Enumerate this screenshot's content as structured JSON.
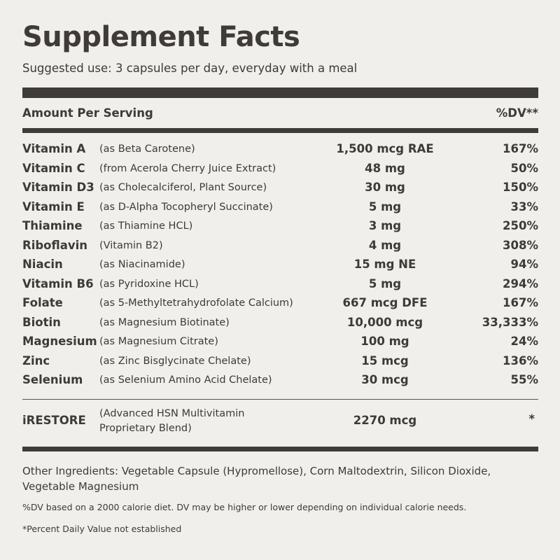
{
  "title": "Supplement Facts",
  "suggested_use": "Suggested use: 3 capsules per day, everyday with a meal",
  "header": {
    "amount_label": "Amount Per Serving",
    "dv_label": "%DV**"
  },
  "nutrients": [
    {
      "name": "Vitamin A",
      "source": "(as Beta Carotene)",
      "amount": "1,500 mcg RAE",
      "dv": "167%"
    },
    {
      "name": "Vitamin C",
      "source": "(from Acerola Cherry Juice Extract)",
      "amount": "48 mg",
      "dv": "50%"
    },
    {
      "name": "Vitamin D3",
      "source": "(as Cholecalciferol, Plant Source)",
      "amount": "30 mg",
      "dv": "150%"
    },
    {
      "name": "Vitamin E",
      "source": "(as D-Alpha Tocopheryl Succinate)",
      "amount": "5 mg",
      "dv": "33%"
    },
    {
      "name": "Thiamine",
      "source": "(as Thiamine HCL)",
      "amount": "3 mg",
      "dv": "250%"
    },
    {
      "name": "Riboflavin",
      "source": "(Vitamin B2)",
      "amount": "4 mg",
      "dv": "308%"
    },
    {
      "name": "Niacin",
      "source": "(as Niacinamide)",
      "amount": "15 mg NE",
      "dv": "94%"
    },
    {
      "name": "Vitamin B6",
      "source": "(as Pyridoxine HCL)",
      "amount": "5 mg",
      "dv": "294%"
    },
    {
      "name": "Folate",
      "source": "(as 5-Methyltetrahydrofolate Calcium)",
      "amount": "667 mcg DFE",
      "dv": "167%"
    },
    {
      "name": "Biotin",
      "source": "(as Magnesium Biotinate)",
      "amount": "10,000 mcg",
      "dv": "33,333%"
    },
    {
      "name": "Magnesium",
      "source": "(as Magnesium Citrate)",
      "amount": "100 mg",
      "dv": "24%"
    },
    {
      "name": "Zinc",
      "source": "(as Zinc Bisglycinate Chelate)",
      "amount": "15 mcg",
      "dv": "136%"
    },
    {
      "name": "Selenium",
      "source": "(as Selenium Amino Acid Chelate)",
      "amount": "30 mcg",
      "dv": "55%"
    }
  ],
  "blend": {
    "name": "iRESTORE",
    "source_line1": "(Advanced HSN Multivitamin",
    "source_line2": "Proprietary Blend)",
    "amount": "2270 mcg",
    "dv": "*"
  },
  "other_ingredients": "Other Ingredients: Vegetable Capsule (Hypromellose), Corn Maltodextrin, Silicon Dioxide, Vegetable Magnesium",
  "footnote_dv": "%DV based on a 2000 calorie diet. DV may be higher or lower depending on individual calorie needs.",
  "footnote_star": "*Percent Daily Value not established",
  "colors": {
    "background": "#f0efeb",
    "text": "#3d3a38",
    "bar": "#3f3b39"
  }
}
